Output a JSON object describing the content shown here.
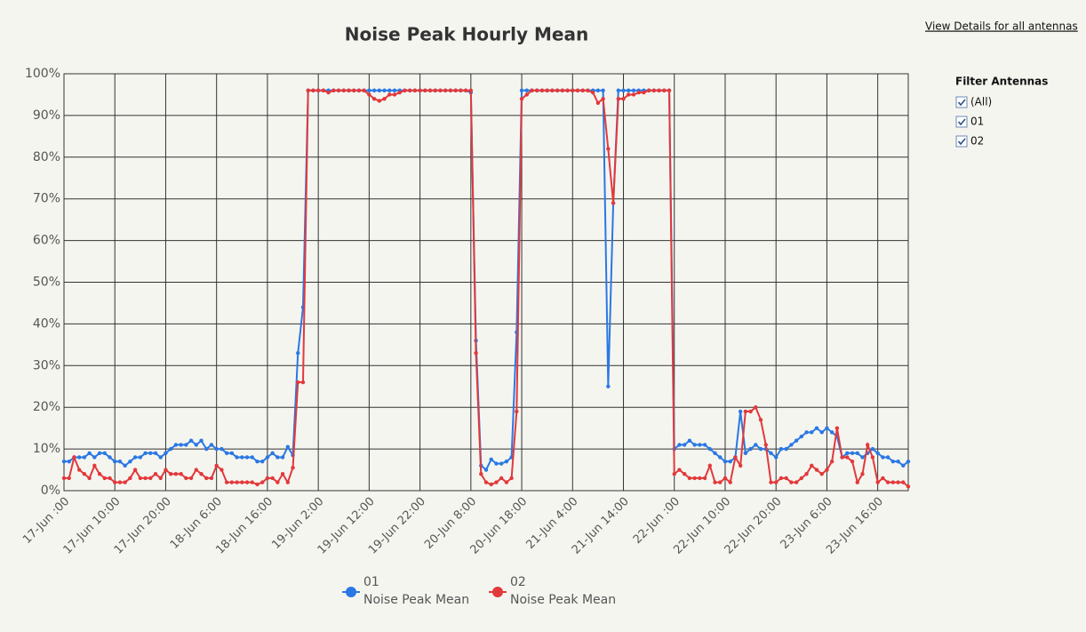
{
  "ui": {
    "details_link": "View Details for all antennas",
    "filter_title": "Filter Antennas",
    "filters": [
      "(All)",
      "01",
      "02"
    ]
  },
  "chart_data": {
    "type": "line",
    "title": "Noise Peak Hourly Mean",
    "categories": [
      "17-Jun :00",
      null,
      null,
      null,
      null,
      null,
      null,
      null,
      null,
      null,
      "17-Jun 10:00",
      null,
      null,
      null,
      null,
      null,
      null,
      null,
      null,
      null,
      "17-Jun 20:00",
      null,
      null,
      null,
      null,
      null,
      null,
      null,
      null,
      null,
      "18-Jun 6:00",
      null,
      null,
      null,
      null,
      null,
      null,
      null,
      null,
      null,
      "18-Jun 16:00",
      null,
      null,
      null,
      null,
      null,
      null,
      null,
      null,
      null,
      "19-Jun 2:00",
      null,
      null,
      null,
      null,
      null,
      null,
      null,
      null,
      null,
      "19-Jun 12:00",
      null,
      null,
      null,
      null,
      null,
      null,
      null,
      null,
      null,
      "19-Jun 22:00",
      null,
      null,
      null,
      null,
      null,
      null,
      null,
      null,
      null,
      "20-Jun 8:00",
      null,
      null,
      null,
      null,
      null,
      null,
      null,
      null,
      null,
      "20-Jun 18:00",
      null,
      null,
      null,
      null,
      null,
      null,
      null,
      null,
      null,
      "21-Jun 4:00",
      null,
      null,
      null,
      null,
      null,
      null,
      null,
      null,
      null,
      "21-Jun 14:00",
      null,
      null,
      null,
      null,
      null,
      null,
      null,
      null,
      null,
      "22-Jun :00",
      null,
      null,
      null,
      null,
      null,
      null,
      null,
      null,
      null,
      "22-Jun 10:00",
      null,
      null,
      null,
      null,
      null,
      null,
      null,
      null,
      null,
      "22-Jun 20:00",
      null,
      null,
      null,
      null,
      null,
      null,
      null,
      null,
      null,
      "23-Jun 6:00",
      null,
      null,
      null,
      null,
      null,
      null,
      null,
      null,
      null,
      "23-Jun 16:00",
      null,
      null,
      null,
      null,
      null,
      null
    ],
    "series": [
      {
        "name": "01",
        "value_name": "Noise Peak Mean",
        "color": "#2a78e4",
        "values": [
          7,
          7,
          8,
          8,
          8,
          9,
          8,
          9,
          9,
          8,
          7,
          7,
          6,
          7,
          8,
          8,
          9,
          9,
          9,
          8,
          9,
          10,
          11,
          11,
          11,
          12,
          11,
          12,
          10,
          11,
          10,
          10,
          9,
          9,
          8,
          8,
          8,
          8,
          7,
          7,
          8,
          9,
          8,
          8,
          10.5,
          8.5,
          33,
          44,
          96,
          96,
          96,
          96,
          96,
          96,
          96,
          96,
          96,
          96,
          96,
          96,
          96,
          96,
          96,
          96,
          96,
          96,
          96,
          96,
          96,
          96,
          96,
          96,
          96,
          96,
          96,
          96,
          96,
          96,
          96,
          96,
          95.5,
          36,
          6,
          5,
          7.5,
          6.5,
          6.5,
          7,
          8,
          38,
          96,
          96,
          96,
          96,
          96,
          96,
          96,
          96,
          96,
          96,
          96,
          96,
          96,
          96,
          96,
          96,
          96,
          25,
          69,
          96,
          96,
          96,
          96,
          96,
          96,
          96,
          96,
          96,
          96,
          96,
          10,
          11,
          11,
          12,
          11,
          11,
          11,
          10,
          9,
          8,
          7,
          7,
          8,
          19,
          9,
          10,
          11,
          10,
          10,
          9,
          8,
          10,
          10,
          11,
          12,
          13,
          14,
          14,
          15,
          14,
          15,
          14,
          13,
          8,
          9,
          9,
          9,
          8,
          9,
          10,
          9,
          8,
          8,
          7,
          7,
          6,
          7
        ]
      },
      {
        "name": "02",
        "value_name": "Noise Peak Mean",
        "color": "#e2393b",
        "values": [
          3,
          3,
          8,
          5,
          4,
          3,
          6,
          4,
          3,
          3,
          2,
          2,
          2,
          3,
          5,
          3,
          3,
          3,
          4,
          3,
          5,
          4,
          4,
          4,
          3,
          3,
          5,
          4,
          3,
          3,
          6,
          5,
          2,
          2,
          2,
          2,
          2,
          2,
          1.5,
          2,
          3,
          3,
          2,
          4,
          2,
          5.5,
          26,
          26,
          96,
          96,
          96,
          96,
          95.5,
          96,
          96,
          96,
          96,
          96,
          96,
          96,
          95,
          94,
          93.5,
          94,
          95,
          95,
          95.5,
          96,
          96,
          96,
          96,
          96,
          96,
          96,
          96,
          96,
          96,
          96,
          96,
          96,
          96,
          33,
          4,
          2,
          1.5,
          2,
          3,
          2,
          3,
          19,
          94,
          95,
          96,
          96,
          96,
          96,
          96,
          96,
          96,
          96,
          96,
          96,
          96,
          96,
          95.5,
          93,
          94,
          82,
          69,
          94,
          94,
          95,
          95,
          95.5,
          95.5,
          96,
          96,
          96,
          96,
          96,
          4,
          5,
          4,
          3,
          3,
          3,
          3,
          6,
          2,
          2,
          3,
          2,
          8,
          6,
          19,
          19,
          20,
          17,
          11,
          2,
          2,
          3,
          3,
          2,
          2,
          3,
          4,
          6,
          5,
          4,
          5,
          7,
          15,
          8,
          8,
          7,
          2,
          4,
          11,
          8,
          2,
          3,
          2,
          2,
          2,
          2,
          1
        ]
      }
    ],
    "ylim": [
      0,
      100
    ],
    "yticks": [
      {
        "value": 0,
        "label": "0%"
      },
      {
        "value": 10,
        "label": "10%"
      },
      {
        "value": 20,
        "label": "20%"
      },
      {
        "value": 30,
        "label": "30%"
      },
      {
        "value": 40,
        "label": "40%"
      },
      {
        "value": 50,
        "label": "50%"
      },
      {
        "value": 60,
        "label": "60%"
      },
      {
        "value": 70,
        "label": "70%"
      },
      {
        "value": 80,
        "label": "80%"
      },
      {
        "value": 90,
        "label": "90%"
      },
      {
        "value": 100,
        "label": "100%"
      }
    ],
    "grid": true,
    "legend": "bottom"
  }
}
